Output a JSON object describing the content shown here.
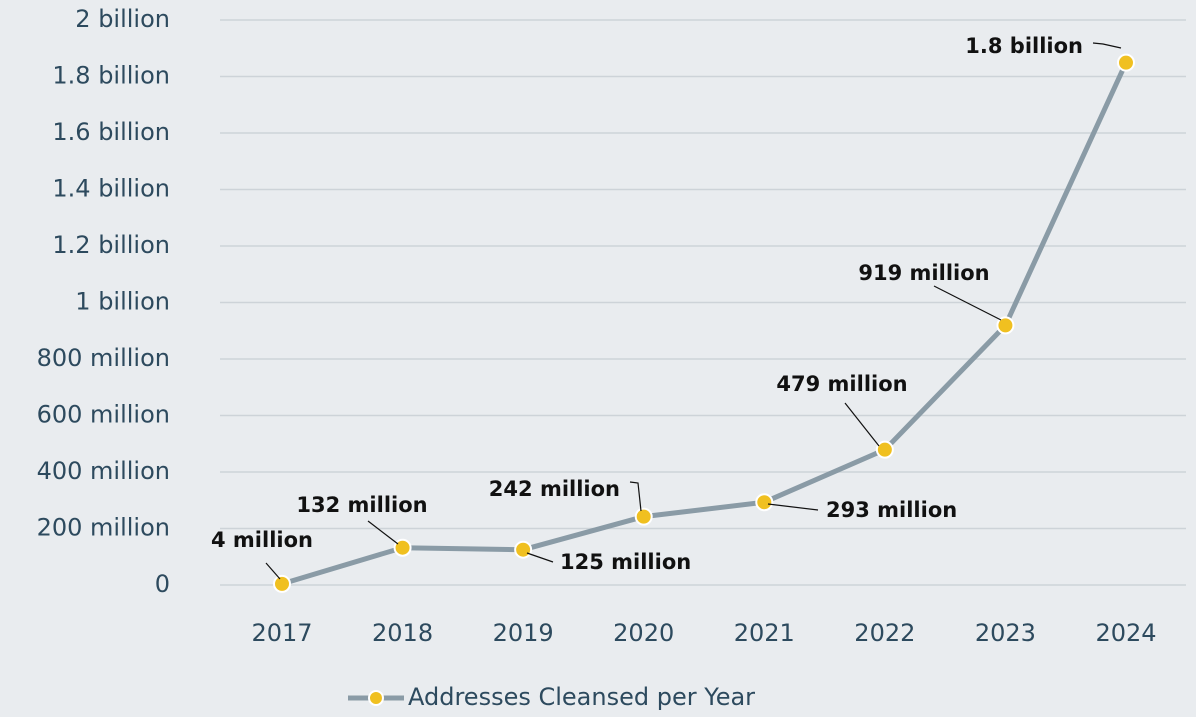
{
  "chart_data": {
    "type": "line",
    "categories": [
      "2017",
      "2018",
      "2019",
      "2020",
      "2021",
      "2022",
      "2023",
      "2024"
    ],
    "series": [
      {
        "name": "Addresses Cleansed per Year",
        "color": "#8a9ba6",
        "marker_color": "#f0c020",
        "values": [
          4000000,
          132000000,
          125000000,
          242000000,
          293000000,
          479000000,
          919000000,
          1849000000
        ],
        "value_labels": [
          "4 million",
          "132 million",
          "125 million",
          "242 million",
          "293 million",
          "479 million",
          "919 million",
          "1.8 billion"
        ]
      }
    ],
    "ylim": [
      0,
      2000000000
    ],
    "yticks": [
      {
        "value": 0,
        "label": "0"
      },
      {
        "value": 200000000,
        "label": "200 million"
      },
      {
        "value": 400000000,
        "label": "400 million"
      },
      {
        "value": 600000000,
        "label": "600 million"
      },
      {
        "value": 800000000,
        "label": "800 million"
      },
      {
        "value": 1000000000,
        "label": "1 billion"
      },
      {
        "value": 1200000000,
        "label": "1.2 billion"
      },
      {
        "value": 1400000000,
        "label": "1.4 billion"
      },
      {
        "value": 1600000000,
        "label": "1.6 billion"
      },
      {
        "value": 1800000000,
        "label": "1.8 billion"
      },
      {
        "value": 2000000000,
        "label": "2 billion"
      }
    ],
    "grid": true,
    "legend": "bottom"
  }
}
